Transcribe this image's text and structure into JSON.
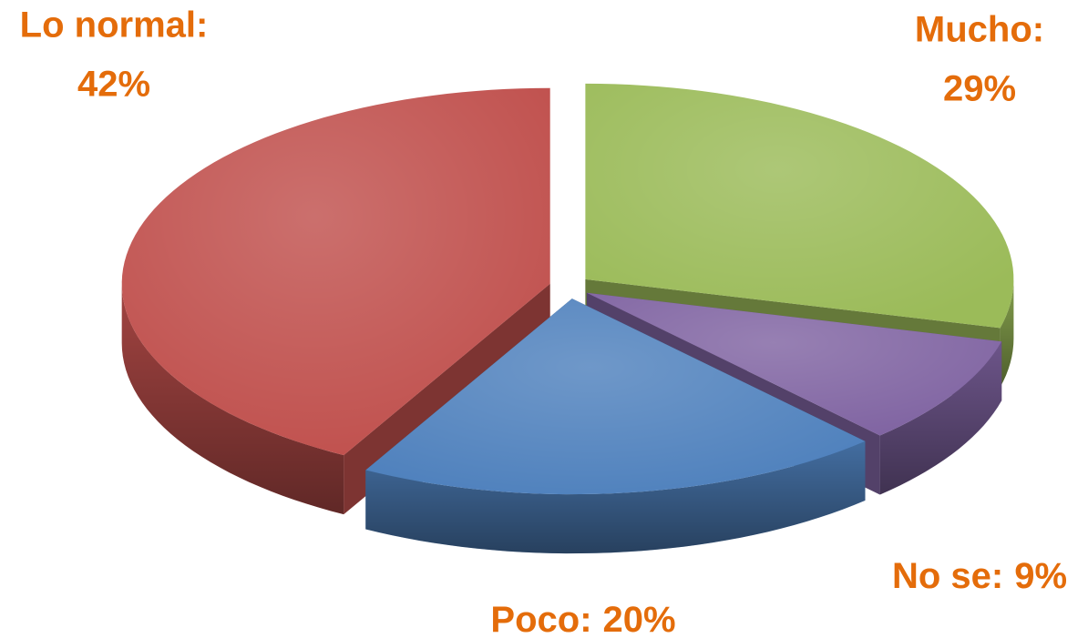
{
  "chart_data": {
    "type": "pie3d",
    "categories": [
      "Mucho:",
      "No se:",
      "Poco:",
      "Lo normal:"
    ],
    "values": [
      29,
      9,
      20,
      42
    ],
    "value_labels": [
      "29%",
      "9%",
      "20%",
      "42%"
    ],
    "colors": [
      "#9bbb59",
      "#8064a2",
      "#4f81bd",
      "#c0504d"
    ],
    "label_color": "#e46c0a"
  }
}
